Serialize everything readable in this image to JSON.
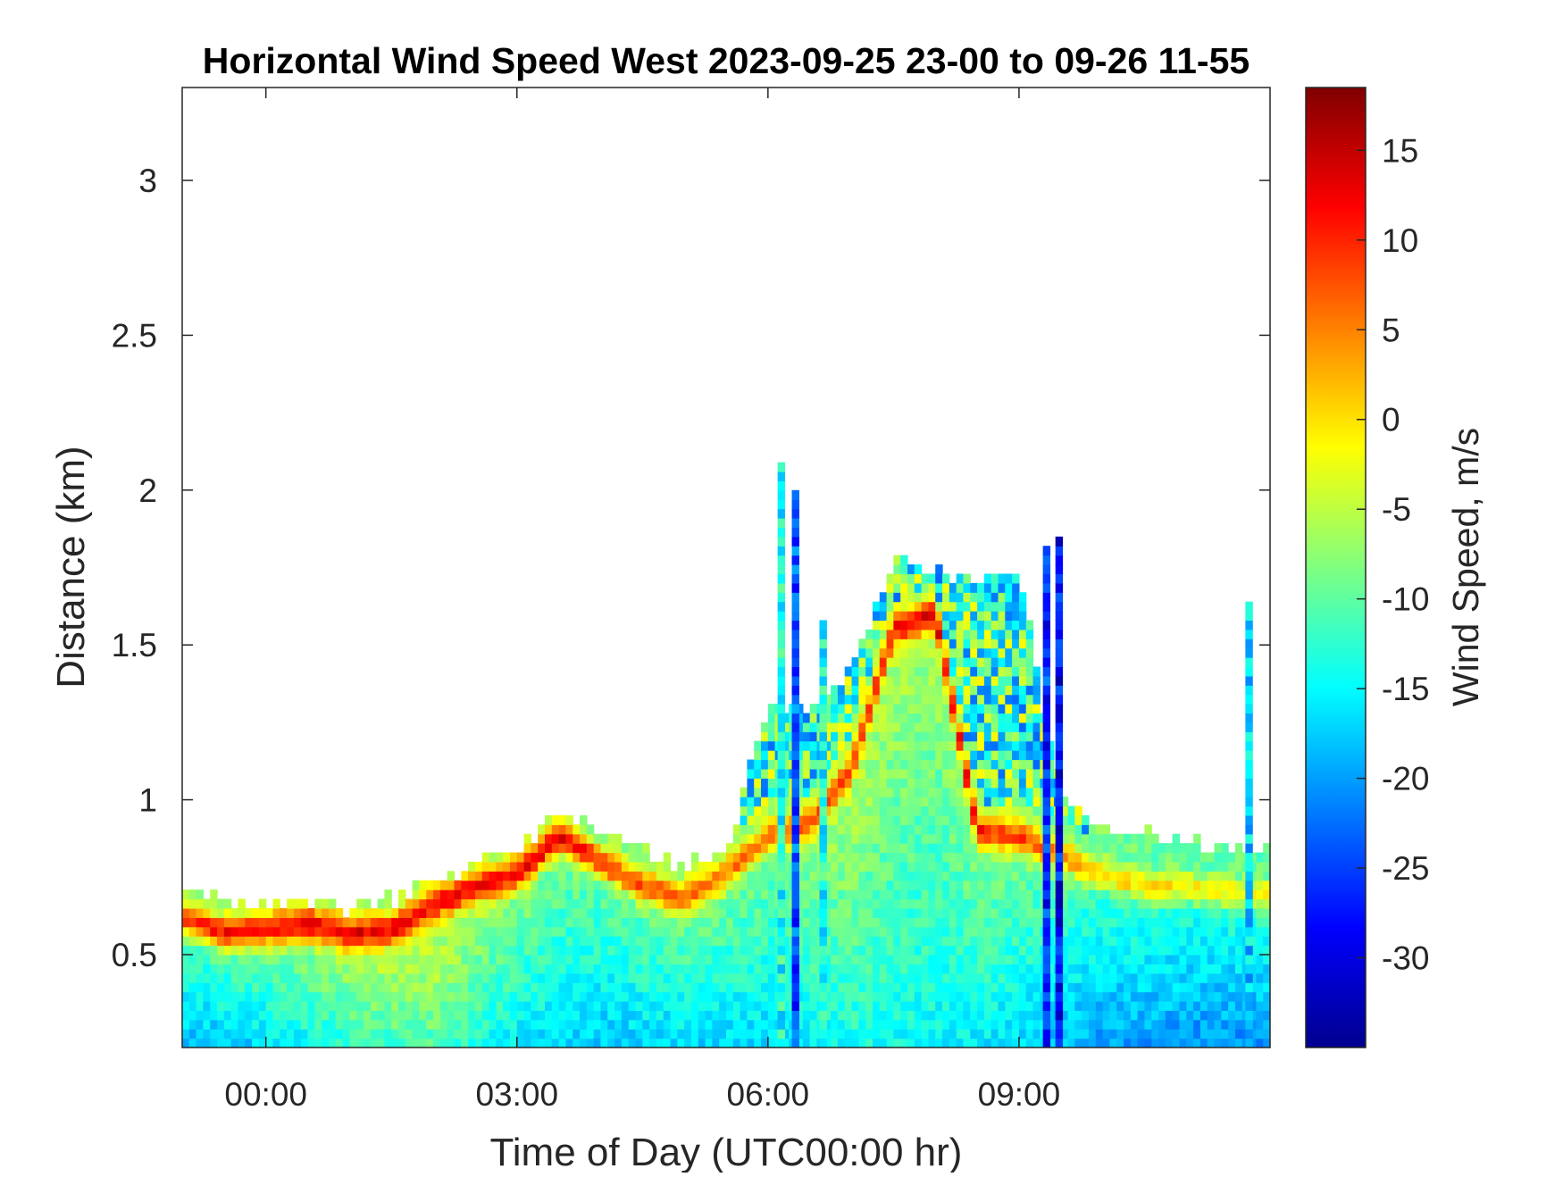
{
  "chart_data": {
    "type": "heatmap",
    "title": "Horizontal Wind Speed West 2023-09-25 23-00 to 09-26 11-55",
    "xlabel": "Time of Day (UTC00:00 hr)",
    "ylabel": "Distance (km)",
    "colorbar_label": "Wind Speed, m/s",
    "x_unit": "hours from 00:00 UTC",
    "xlim": [
      -1.0,
      12.0
    ],
    "ylim": [
      0.2,
      3.3
    ],
    "x_ticks": [
      0,
      3,
      6,
      9
    ],
    "x_tick_labels": [
      "00:00",
      "03:00",
      "06:00",
      "09:00"
    ],
    "y_ticks": [
      0.5,
      1,
      1.5,
      2,
      2.5,
      3
    ],
    "y_tick_labels": [
      "0.5",
      "1",
      "1.5",
      "2",
      "2.5",
      "3"
    ],
    "clim": [
      -35,
      18.5
    ],
    "cbar_ticks": [
      15,
      10,
      5,
      0,
      -5,
      -10,
      -15,
      -20,
      -25,
      -30
    ],
    "cbar_tick_labels": [
      "15",
      "10",
      "5",
      "0",
      "-5",
      "-10",
      "-15",
      "-20",
      "-25",
      "-30"
    ],
    "colormap": "jet",
    "grid": false,
    "data_top_km": [
      [
        -1.0,
        0.68
      ],
      [
        -0.5,
        0.66
      ],
      [
        0.0,
        0.65
      ],
      [
        0.5,
        0.65
      ],
      [
        1.0,
        0.64
      ],
      [
        1.5,
        0.66
      ],
      [
        2.0,
        0.72
      ],
      [
        2.5,
        0.78
      ],
      [
        3.0,
        0.83
      ],
      [
        3.5,
        0.95
      ],
      [
        4.0,
        0.88
      ],
      [
        4.5,
        0.83
      ],
      [
        5.0,
        0.78
      ],
      [
        5.5,
        0.82
      ],
      [
        6.0,
        1.3
      ],
      [
        6.5,
        1.25
      ],
      [
        7.0,
        1.4
      ],
      [
        7.5,
        1.75
      ],
      [
        8.0,
        1.72
      ],
      [
        8.5,
        1.68
      ],
      [
        9.0,
        1.72
      ],
      [
        9.5,
        1.0
      ],
      [
        10.0,
        0.9
      ],
      [
        10.5,
        0.88
      ],
      [
        11.0,
        0.86
      ],
      [
        11.5,
        0.84
      ],
      [
        12.0,
        0.82
      ]
    ],
    "jet_height_km": [
      [
        -1.0,
        0.62
      ],
      [
        -0.5,
        0.57
      ],
      [
        0.0,
        0.58
      ],
      [
        0.5,
        0.6
      ],
      [
        1.0,
        0.57
      ],
      [
        1.5,
        0.58
      ],
      [
        2.0,
        0.66
      ],
      [
        2.5,
        0.72
      ],
      [
        3.0,
        0.76
      ],
      [
        3.5,
        0.88
      ],
      [
        4.0,
        0.8
      ],
      [
        4.5,
        0.72
      ],
      [
        5.0,
        0.68
      ],
      [
        5.5,
        0.76
      ],
      [
        6.0,
        0.88
      ],
      [
        6.5,
        0.92
      ],
      [
        7.0,
        1.1
      ],
      [
        7.5,
        1.55
      ],
      [
        8.0,
        1.6
      ],
      [
        8.5,
        0.9
      ],
      [
        9.0,
        0.88
      ],
      [
        9.5,
        0.82
      ],
      [
        10.0,
        0.76
      ],
      [
        10.5,
        0.72
      ],
      [
        11.0,
        0.72
      ],
      [
        11.5,
        0.7
      ],
      [
        12.0,
        0.7
      ]
    ],
    "jet_speed_ms": [
      [
        -1.0,
        12
      ],
      [
        0.0,
        12
      ],
      [
        1.0,
        11
      ],
      [
        2.0,
        10
      ],
      [
        3.0,
        11
      ],
      [
        3.5,
        13
      ],
      [
        4.0,
        10
      ],
      [
        5.0,
        6
      ],
      [
        6.0,
        5
      ],
      [
        7.0,
        7
      ],
      [
        8.0,
        12
      ],
      [
        8.5,
        10
      ],
      [
        9.0,
        9
      ],
      [
        10.0,
        4
      ],
      [
        11.0,
        3
      ],
      [
        12.0,
        2
      ]
    ],
    "surface_speed_ms": [
      [
        -1.0,
        -19
      ],
      [
        0.0,
        -17
      ],
      [
        1.0,
        -13
      ],
      [
        2.0,
        -11
      ],
      [
        3.0,
        -16
      ],
      [
        4.0,
        -18
      ],
      [
        5.0,
        -17
      ],
      [
        6.0,
        -17
      ],
      [
        7.0,
        -14
      ],
      [
        8.0,
        -15
      ],
      [
        9.0,
        -17
      ],
      [
        10.0,
        -20
      ],
      [
        11.0,
        -21
      ],
      [
        12.0,
        -21
      ]
    ],
    "spikes": [
      {
        "x": 6.16,
        "top_km": 2.08,
        "speed_ms": -14
      },
      {
        "x": 6.33,
        "top_km": 1.98,
        "speed_ms": -24
      },
      {
        "x": 6.66,
        "top_km": 1.58,
        "speed_ms": -14
      },
      {
        "x": 9.33,
        "top_km": 1.82,
        "speed_ms": -26
      },
      {
        "x": 9.48,
        "top_km": 1.85,
        "speed_ms": -28
      },
      {
        "x": 11.75,
        "top_km": 1.64,
        "speed_ms": -17
      }
    ]
  }
}
